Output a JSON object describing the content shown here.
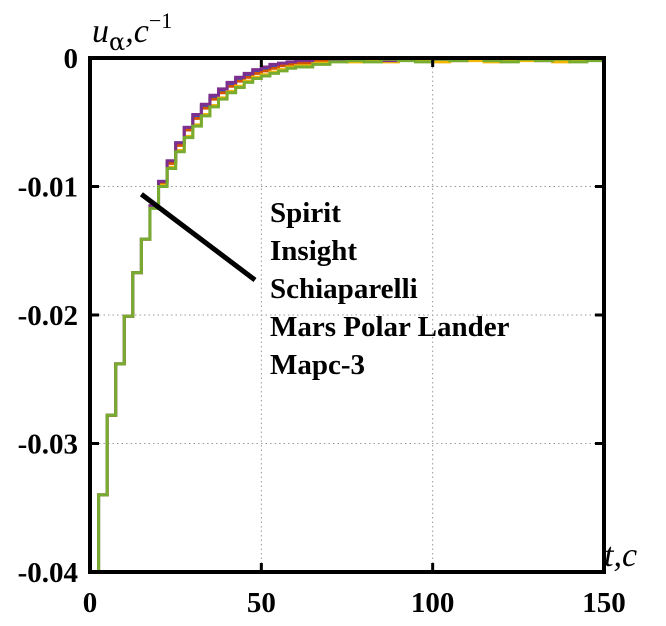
{
  "chart_data": {
    "type": "line",
    "title": "",
    "ylabel": {
      "main": "u",
      "sub": "α",
      "unit": ",c",
      "sup": "−1"
    },
    "xlabel": {
      "main": "t",
      "unit": ",c"
    },
    "xlim": [
      0,
      150
    ],
    "ylim": [
      -0.04,
      0
    ],
    "xticks": [
      0,
      50,
      100,
      150
    ],
    "xtick_labels": [
      "0",
      "50",
      "100",
      "150"
    ],
    "yticks": [
      0,
      -0.01,
      -0.02,
      -0.03,
      -0.04
    ],
    "ytick_labels": [
      "0",
      "-0.01",
      "-0.02",
      "-0.03",
      "-0.04"
    ],
    "grid": true,
    "step_width": 2.5,
    "legend_location": "center-right",
    "annotation": "A line links the curves at t≈15 to the legend block",
    "series": [
      {
        "name": "Spirit",
        "color": "#1f4bd8",
        "x": [
          0,
          2.5,
          5,
          7.5,
          10,
          12.5,
          15,
          17.5,
          20,
          22.5,
          25,
          27.5,
          30,
          32.5,
          35,
          37.5,
          40,
          42.5,
          45,
          47.5,
          50,
          52.5,
          55,
          57.5,
          60,
          65,
          70,
          75,
          80,
          85,
          90,
          95,
          100,
          105,
          110,
          115,
          120,
          125,
          130,
          135,
          140,
          145,
          150
        ],
        "y": [
          -0.04,
          -0.034,
          -0.0278,
          -0.0238,
          -0.0201,
          -0.0167,
          -0.0141,
          -0.0115,
          -0.0096,
          -0.0081,
          -0.0066,
          -0.0054,
          -0.0045,
          -0.0037,
          -0.003,
          -0.0025,
          -0.002,
          -0.0016,
          -0.0013,
          -0.001,
          -0.0008,
          -0.0006,
          -0.0005,
          -0.0004,
          -0.0003,
          -0.0001,
          -0.0001,
          0.0001,
          -0.0002,
          0.0001,
          -0.0001,
          0.0002,
          -0.0002,
          0.0001,
          0,
          -0.0002,
          0.0001,
          0,
          -0.0001,
          0.0001,
          -0.0001,
          0,
          -0.0001
        ]
      },
      {
        "name": "Insight",
        "color": "#d35400",
        "x": [
          0,
          2.5,
          5,
          7.5,
          10,
          12.5,
          15,
          17.5,
          20,
          22.5,
          25,
          27.5,
          30,
          32.5,
          35,
          37.5,
          40,
          42.5,
          45,
          47.5,
          50,
          52.5,
          55,
          57.5,
          60,
          65,
          70,
          75,
          80,
          85,
          90,
          95,
          100,
          105,
          110,
          115,
          120,
          125,
          130,
          135,
          140,
          145,
          150
        ],
        "y": [
          -0.04,
          -0.034,
          -0.0278,
          -0.0238,
          -0.0201,
          -0.0167,
          -0.0141,
          -0.0115,
          -0.0097,
          -0.0082,
          -0.0068,
          -0.0056,
          -0.0047,
          -0.0039,
          -0.0032,
          -0.0027,
          -0.0022,
          -0.0018,
          -0.0015,
          -0.0012,
          -0.001,
          -0.0008,
          -0.0006,
          -0.0005,
          -0.0004,
          -0.0002,
          0.0001,
          -0.0001,
          0.0002,
          -0.0001,
          0.0001,
          -0.0001,
          0.0002,
          -0.0002,
          0.0001,
          0.0001,
          -0.0001,
          0.0002,
          -0.0001,
          0,
          0.0001,
          -0.0001,
          0
        ]
      },
      {
        "name": "Schiaparelli",
        "color": "#f2b705",
        "x": [
          0,
          2.5,
          5,
          7.5,
          10,
          12.5,
          15,
          17.5,
          20,
          22.5,
          25,
          27.5,
          30,
          32.5,
          35,
          37.5,
          40,
          42.5,
          45,
          47.5,
          50,
          52.5,
          55,
          57.5,
          60,
          65,
          70,
          75,
          80,
          85,
          90,
          95,
          100,
          105,
          110,
          115,
          120,
          125,
          130,
          135,
          140,
          145,
          150
        ],
        "y": [
          -0.04,
          -0.034,
          -0.0278,
          -0.0238,
          -0.0201,
          -0.0167,
          -0.0141,
          -0.0116,
          -0.0099,
          -0.0085,
          -0.0072,
          -0.0061,
          -0.0052,
          -0.0044,
          -0.0037,
          -0.0031,
          -0.0026,
          -0.0022,
          -0.0018,
          -0.0015,
          -0.0013,
          -0.0011,
          -0.0009,
          -0.0007,
          -0.0006,
          -0.0004,
          -0.0002,
          -0.0003,
          -0.0001,
          -0.0003,
          -0.0001,
          -0.0002,
          -0.0003,
          -0.0001,
          -0.0002,
          -0.0003,
          -0.0001,
          -0.0002,
          -0.0001,
          -0.0003,
          -0.0002,
          -0.0001,
          -0.0002
        ]
      },
      {
        "name": "Mars Polar Lander",
        "color": "#7e2f8e",
        "x": [
          0,
          2.5,
          5,
          7.5,
          10,
          12.5,
          15,
          17.5,
          20,
          22.5,
          25,
          27.5,
          30,
          32.5,
          35,
          37.5,
          40,
          42.5,
          45,
          47.5,
          50,
          52.5,
          55,
          57.5,
          60,
          65,
          70,
          75,
          80,
          85,
          90,
          95,
          100,
          105,
          110,
          115,
          120,
          125,
          130,
          135,
          140,
          145,
          150
        ],
        "y": [
          -0.04,
          -0.034,
          -0.0278,
          -0.0238,
          -0.0201,
          -0.0167,
          -0.0141,
          -0.0115,
          -0.0096,
          -0.008,
          -0.0066,
          -0.0054,
          -0.0044,
          -0.0036,
          -0.0029,
          -0.0024,
          -0.0019,
          -0.0015,
          -0.0012,
          -0.0009,
          -0.0007,
          -0.0005,
          -0.0004,
          -0.0003,
          -0.0002,
          0.0001,
          -0.0001,
          0.0002,
          0,
          -0.0002,
          0.0001,
          0.0002,
          -0.0001,
          0,
          0.0002,
          -0.0001,
          0.0001,
          0,
          -0.0002,
          0.0001,
          0,
          0.0001,
          -0.0001
        ]
      },
      {
        "name": "Марс-3",
        "color": "#77ac30",
        "x": [
          0,
          2.5,
          5,
          7.5,
          10,
          12.5,
          15,
          17.5,
          20,
          22.5,
          25,
          27.5,
          30,
          32.5,
          35,
          37.5,
          40,
          42.5,
          45,
          47.5,
          50,
          52.5,
          55,
          57.5,
          60,
          65,
          70,
          75,
          80,
          85,
          90,
          95,
          100,
          105,
          110,
          115,
          120,
          125,
          130,
          135,
          140,
          145,
          150
        ],
        "y": [
          -0.04,
          -0.034,
          -0.0278,
          -0.0238,
          -0.0201,
          -0.0167,
          -0.0141,
          -0.0117,
          -0.01,
          -0.0086,
          -0.0073,
          -0.0062,
          -0.0053,
          -0.0045,
          -0.0038,
          -0.0032,
          -0.0027,
          -0.0023,
          -0.0019,
          -0.0016,
          -0.0014,
          -0.0012,
          -0.001,
          -0.0008,
          -0.0007,
          -0.0005,
          -0.0003,
          -0.0002,
          -0.0003,
          -0.0001,
          -0.0002,
          -0.0003,
          -0.0001,
          -0.0002,
          0,
          -0.0002,
          -0.0003,
          -0.0001,
          -0.0002,
          -0.0001,
          -0.0003,
          -0.0002,
          -0.0001
        ]
      }
    ]
  }
}
